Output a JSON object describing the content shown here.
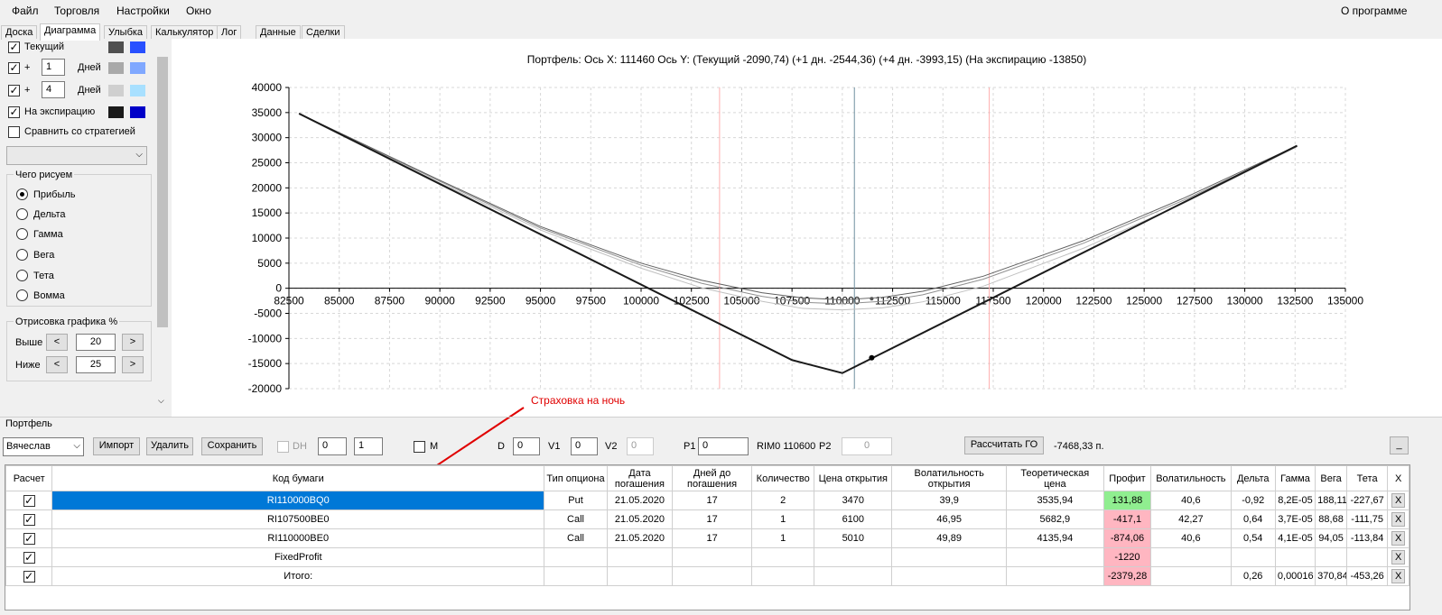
{
  "menu": {
    "file": "Файл",
    "trade": "Торговля",
    "settings": "Настройки",
    "window": "Окно",
    "about": "О программе"
  },
  "tabs": [
    "Доска",
    "Диаграмма",
    "Улыбка",
    "Калькулятор",
    "Лог",
    "Данные",
    "Сделки"
  ],
  "left": {
    "current_label": "Текущий",
    "plus": "+",
    "days_label": "Дней",
    "days1": "1",
    "days2": "4",
    "expiry_label": "На экспирацию",
    "compare_label": "Сравнить со стратегией",
    "draw_group": "Чего рисуем",
    "radios": [
      "Прибыль",
      "Дельта",
      "Гамма",
      "Вега",
      "Тета",
      "Вомма"
    ],
    "draw_pct_group": "Отрисовка графика %",
    "above_label": "Выше",
    "below_label": "Ниже",
    "above_val": "20",
    "below_val": "25",
    "btn_left": "<",
    "btn_right": ">",
    "colors": {
      "cur1": "#505050",
      "cur2": "#2850ff",
      "d1a": "#a9a9a9",
      "d1b": "#80a8ff",
      "d2a": "#cfcfcf",
      "d2b": "#a8e0ff",
      "exp1": "#1a1a1a",
      "exp2": "#0000c8"
    }
  },
  "chart_data": {
    "type": "line",
    "title": "Портфель: Ось X:  111460 Ось Y:   (Текущий -2090,74)  (+1 дн.  -2544,36)  (+4 дн.  -3993,15)  (На экспирацию -13850)",
    "xlim": [
      82500,
      135000
    ],
    "ylim": [
      -20000,
      40000
    ],
    "x_ticks": [
      82500,
      85000,
      87500,
      90000,
      92500,
      95000,
      97500,
      100000,
      102500,
      105000,
      107500,
      110000,
      112500,
      115000,
      117500,
      120000,
      122500,
      125000,
      127500,
      130000,
      132500,
      135000
    ],
    "y_ticks": [
      40000,
      35000,
      30000,
      25000,
      20000,
      15000,
      10000,
      5000,
      0,
      -5000,
      -10000,
      -15000,
      -20000
    ],
    "x_tick_labels": [
      "82500",
      "85000",
      "87500",
      "90000",
      "92500",
      "95000",
      "97500",
      "100000",
      "102500",
      "105000",
      "107500",
      "110000",
      "112500",
      "115000",
      "117500",
      "120000",
      "122500",
      "125000",
      "127500",
      "130000",
      "132500",
      "135000"
    ],
    "y_tick_labels": [
      "40000",
      "35000",
      "30000",
      "25000",
      "20000",
      "15000",
      "10000",
      "5000",
      "0",
      "-5000",
      "-10000",
      "-15000",
      "-20000"
    ],
    "grid": true,
    "vlines_red": [
      103900,
      117300
    ],
    "vline_current": 110600,
    "marker": {
      "x": 111460,
      "y": -13850
    },
    "marker_small": {
      "x": 111460,
      "y": -2090
    },
    "series": [
      {
        "color": "#1a1a1a",
        "width": 2,
        "x": [
          83000,
          107500,
          110000,
          132600
        ],
        "y": [
          34800,
          -14300,
          -16900,
          28400
        ]
      },
      {
        "color": "#606060",
        "width": 1,
        "x": [
          83000,
          90000,
          95000,
          100000,
          103000,
          106000,
          108000,
          110000,
          112000,
          114000,
          117000,
          122000,
          127000,
          132600
        ],
        "y": [
          34800,
          21500,
          12300,
          5000,
          1600,
          -900,
          -1900,
          -2300,
          -1800,
          -600,
          2400,
          9500,
          18000,
          28400
        ]
      },
      {
        "color": "#909090",
        "width": 1,
        "x": [
          83000,
          90000,
          95000,
          100000,
          103000,
          106000,
          108000,
          110000,
          112000,
          114000,
          117000,
          122000,
          127000,
          132600
        ],
        "y": [
          34800,
          21300,
          12000,
          4600,
          1000,
          -1600,
          -2800,
          -3100,
          -2600,
          -1300,
          1800,
          9000,
          17600,
          28300
        ]
      },
      {
        "color": "#c0c0c0",
        "width": 1,
        "x": [
          83000,
          90000,
          95000,
          100000,
          103000,
          106000,
          108000,
          110000,
          112000,
          114000,
          117000,
          122000,
          127000,
          132600
        ],
        "y": [
          34800,
          21000,
          11600,
          4000,
          100,
          -2600,
          -4000,
          -4300,
          -3900,
          -2700,
          400,
          8000,
          17000,
          28200
        ]
      }
    ]
  },
  "portfolio": {
    "label": "Портфель",
    "user": "Вячеслав",
    "import": "Импорт",
    "delete": "Удалить",
    "save": "Сохранить",
    "dh": "DH",
    "spin1": "0",
    "spin2": "1",
    "m": "M",
    "d_label": "D",
    "d_val": "0",
    "v1_label": "V1",
    "v1_val": "0",
    "v2_label": "V2",
    "v2_val": "0",
    "p1_label": "P1",
    "p1_val": "0",
    "rim": "RIM0 110600",
    "p2_label": "P2",
    "p2_val": "0",
    "calc_go": "Рассчитать ГО",
    "go_val": "-7468,33 п.",
    "minimize": "_",
    "annotation": "Страховка на ночь"
  },
  "table": {
    "headers": [
      "Расчет",
      "Код бумаги",
      "Тип опциона",
      "Дата погашения",
      "Дней до погашения",
      "Количество",
      "Цена открытия",
      "Волатильность открытия",
      "Теоретическая цена",
      "Профит",
      "Волатильность",
      "Дельта",
      "Гамма",
      "Вега",
      "Тета",
      "X"
    ],
    "rows": [
      {
        "code": "RI110000BQ0",
        "type": "Put",
        "date": "21.05.2020",
        "days": "17",
        "qty": "2",
        "open": "3470",
        "vol_open": "39,9",
        "theo": "3535,94",
        "profit": "131,88",
        "vol": "40,6",
        "delta": "-0,92",
        "gamma": "8,2E-05",
        "vega": "188,11",
        "theta": "-227,67",
        "x": "X"
      },
      {
        "code": "RI107500BE0",
        "type": "Call",
        "date": "21.05.2020",
        "days": "17",
        "qty": "1",
        "open": "6100",
        "vol_open": "46,95",
        "theo": "5682,9",
        "profit": "-417,1",
        "vol": "42,27",
        "delta": "0,64",
        "gamma": "3,7E-05",
        "vega": "88,68",
        "theta": "-111,75",
        "x": "X"
      },
      {
        "code": "RI110000BE0",
        "type": "Call",
        "date": "21.05.2020",
        "days": "17",
        "qty": "1",
        "open": "5010",
        "vol_open": "49,89",
        "theo": "4135,94",
        "profit": "-874,06",
        "vol": "40,6",
        "delta": "0,54",
        "gamma": "4,1E-05",
        "vega": "94,05",
        "theta": "-113,84",
        "x": "X"
      },
      {
        "code": "FixedProfit",
        "type": "",
        "date": "",
        "days": "",
        "qty": "",
        "open": "",
        "vol_open": "",
        "theo": "",
        "profit": "-1220",
        "vol": "",
        "delta": "",
        "gamma": "",
        "vega": "",
        "theta": "",
        "x": "X"
      },
      {
        "code": "Итого:",
        "type": "",
        "date": "",
        "days": "",
        "qty": "",
        "open": "",
        "vol_open": "",
        "theo": "",
        "profit": "-2379,28",
        "vol": "",
        "delta": "0,26",
        "gamma": "0,00016",
        "vega": "370,84",
        "theta": "-453,26",
        "x": "X"
      }
    ]
  }
}
